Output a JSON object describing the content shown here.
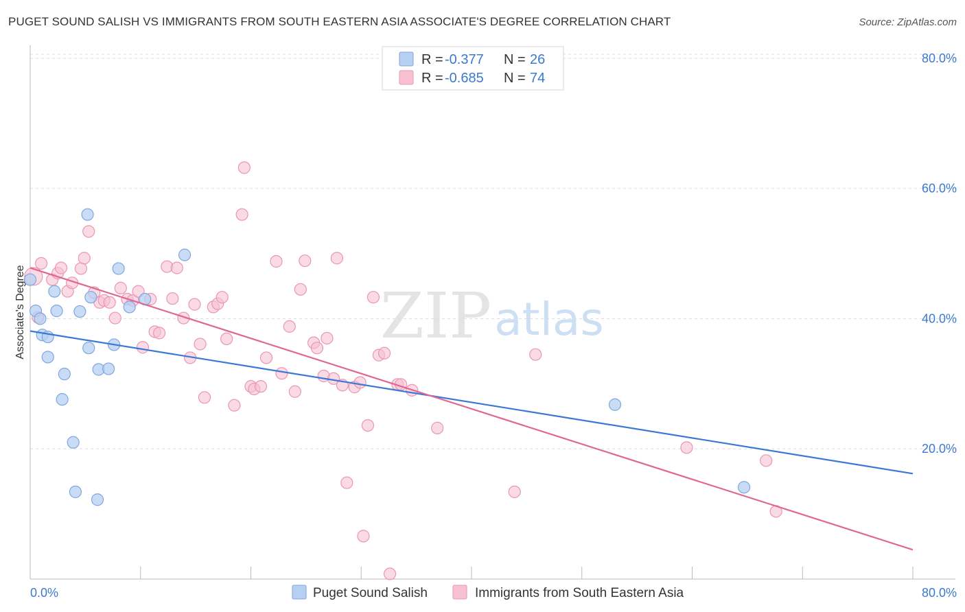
{
  "title": "PUGET SOUND SALISH VS IMMIGRANTS FROM SOUTH EASTERN ASIA ASSOCIATE'S DEGREE CORRELATION CHART",
  "source": "Source: ZipAtlas.com",
  "watermark": {
    "left": "ZIP",
    "right": "atlas"
  },
  "colors": {
    "blue": "#3a78d6",
    "blue_fill": "#b7d0f2",
    "pink": "#e0678f",
    "pink_fill": "#f7c1d2",
    "tick": "#3b78d0",
    "grid": "#dddddd"
  },
  "legend": {
    "rows": [
      {
        "r_label": "R = ",
        "r_value": "-0.377",
        "n_label": "N = ",
        "n_value": "26"
      },
      {
        "r_label": "R = ",
        "r_value": "-0.685",
        "n_label": "N = ",
        "n_value": "74"
      }
    ]
  },
  "chart_data": {
    "type": "scatter",
    "xlabel": "",
    "ylabel": "Associate's Degree",
    "xlim": [
      0,
      80
    ],
    "ylim": [
      0,
      82
    ],
    "x_tick_labels": [
      "0.0%",
      "80.0%"
    ],
    "y_ticks": [
      20,
      40,
      60,
      80
    ],
    "y_tick_labels": [
      "20.0%",
      "40.0%",
      "60.0%",
      "80.0%"
    ],
    "grid": true,
    "series": [
      {
        "name": "Puget Sound Salish",
        "color": "#3a78d6",
        "points": [
          [
            0.0,
            46.0
          ],
          [
            0.5,
            41.2
          ],
          [
            0.9,
            40.0
          ],
          [
            1.1,
            37.5
          ],
          [
            1.6,
            37.2
          ],
          [
            1.6,
            34.1
          ],
          [
            2.2,
            44.2
          ],
          [
            2.4,
            41.2
          ],
          [
            3.1,
            31.5
          ],
          [
            2.9,
            27.6
          ],
          [
            3.9,
            21.0
          ],
          [
            4.1,
            13.4
          ],
          [
            4.5,
            41.1
          ],
          [
            5.2,
            56.0
          ],
          [
            5.3,
            35.5
          ],
          [
            5.5,
            43.3
          ],
          [
            6.1,
            12.2
          ],
          [
            6.2,
            32.2
          ],
          [
            7.1,
            32.3
          ],
          [
            7.6,
            36.0
          ],
          [
            8.0,
            47.7
          ],
          [
            9.0,
            41.8
          ],
          [
            10.4,
            43.0
          ],
          [
            14.0,
            49.8
          ],
          [
            53.0,
            26.8
          ],
          [
            64.7,
            14.1
          ]
        ],
        "trend": {
          "x": [
            0,
            80
          ],
          "y": [
            38.1,
            16.2
          ]
        }
      },
      {
        "name": "Immigrants from South Eastern Asia",
        "color": "#e0678f",
        "points": [
          [
            0.3,
            46.5
          ],
          [
            0.7,
            40.2
          ],
          [
            1.0,
            48.5
          ],
          [
            2.0,
            46.0
          ],
          [
            2.5,
            47.0
          ],
          [
            2.8,
            47.8
          ],
          [
            3.4,
            44.2
          ],
          [
            3.8,
            45.5
          ],
          [
            4.6,
            47.7
          ],
          [
            4.9,
            49.3
          ],
          [
            5.3,
            53.4
          ],
          [
            5.8,
            44.0
          ],
          [
            6.3,
            42.5
          ],
          [
            6.7,
            42.8
          ],
          [
            7.2,
            42.5
          ],
          [
            7.7,
            40.1
          ],
          [
            8.2,
            44.7
          ],
          [
            8.8,
            43.0
          ],
          [
            9.3,
            42.8
          ],
          [
            9.8,
            44.2
          ],
          [
            10.2,
            35.6
          ],
          [
            10.9,
            43.0
          ],
          [
            11.3,
            38.0
          ],
          [
            11.7,
            37.8
          ],
          [
            12.4,
            48.0
          ],
          [
            12.9,
            43.1
          ],
          [
            13.3,
            47.8
          ],
          [
            13.9,
            40.1
          ],
          [
            14.5,
            34.0
          ],
          [
            14.9,
            42.2
          ],
          [
            15.4,
            36.1
          ],
          [
            15.8,
            27.9
          ],
          [
            16.6,
            41.8
          ],
          [
            17.0,
            42.3
          ],
          [
            17.4,
            43.3
          ],
          [
            17.8,
            36.9
          ],
          [
            18.5,
            26.7
          ],
          [
            19.2,
            56.0
          ],
          [
            19.4,
            63.2
          ],
          [
            20.0,
            29.6
          ],
          [
            20.3,
            29.2
          ],
          [
            20.9,
            29.6
          ],
          [
            21.4,
            34.0
          ],
          [
            22.3,
            48.8
          ],
          [
            22.8,
            31.6
          ],
          [
            23.5,
            38.8
          ],
          [
            24.0,
            28.8
          ],
          [
            24.5,
            44.5
          ],
          [
            24.9,
            48.9
          ],
          [
            25.7,
            36.3
          ],
          [
            26.0,
            35.5
          ],
          [
            26.6,
            31.2
          ],
          [
            26.9,
            37.0
          ],
          [
            27.5,
            30.8
          ],
          [
            27.8,
            49.3
          ],
          [
            28.3,
            29.8
          ],
          [
            29.4,
            29.5
          ],
          [
            29.9,
            30.2
          ],
          [
            30.6,
            23.6
          ],
          [
            31.1,
            43.3
          ],
          [
            31.6,
            34.4
          ],
          [
            32.1,
            34.7
          ],
          [
            32.6,
            0.8
          ],
          [
            33.3,
            29.9
          ],
          [
            33.6,
            29.9
          ],
          [
            34.6,
            29.0
          ],
          [
            36.9,
            23.2
          ],
          [
            28.7,
            14.8
          ],
          [
            30.2,
            6.6
          ],
          [
            43.9,
            13.4
          ],
          [
            45.8,
            34.5
          ],
          [
            59.5,
            20.2
          ],
          [
            66.7,
            18.2
          ],
          [
            67.6,
            10.4
          ]
        ],
        "trend": {
          "x": [
            0,
            80
          ],
          "y": [
            47.8,
            4.5
          ]
        }
      }
    ]
  }
}
